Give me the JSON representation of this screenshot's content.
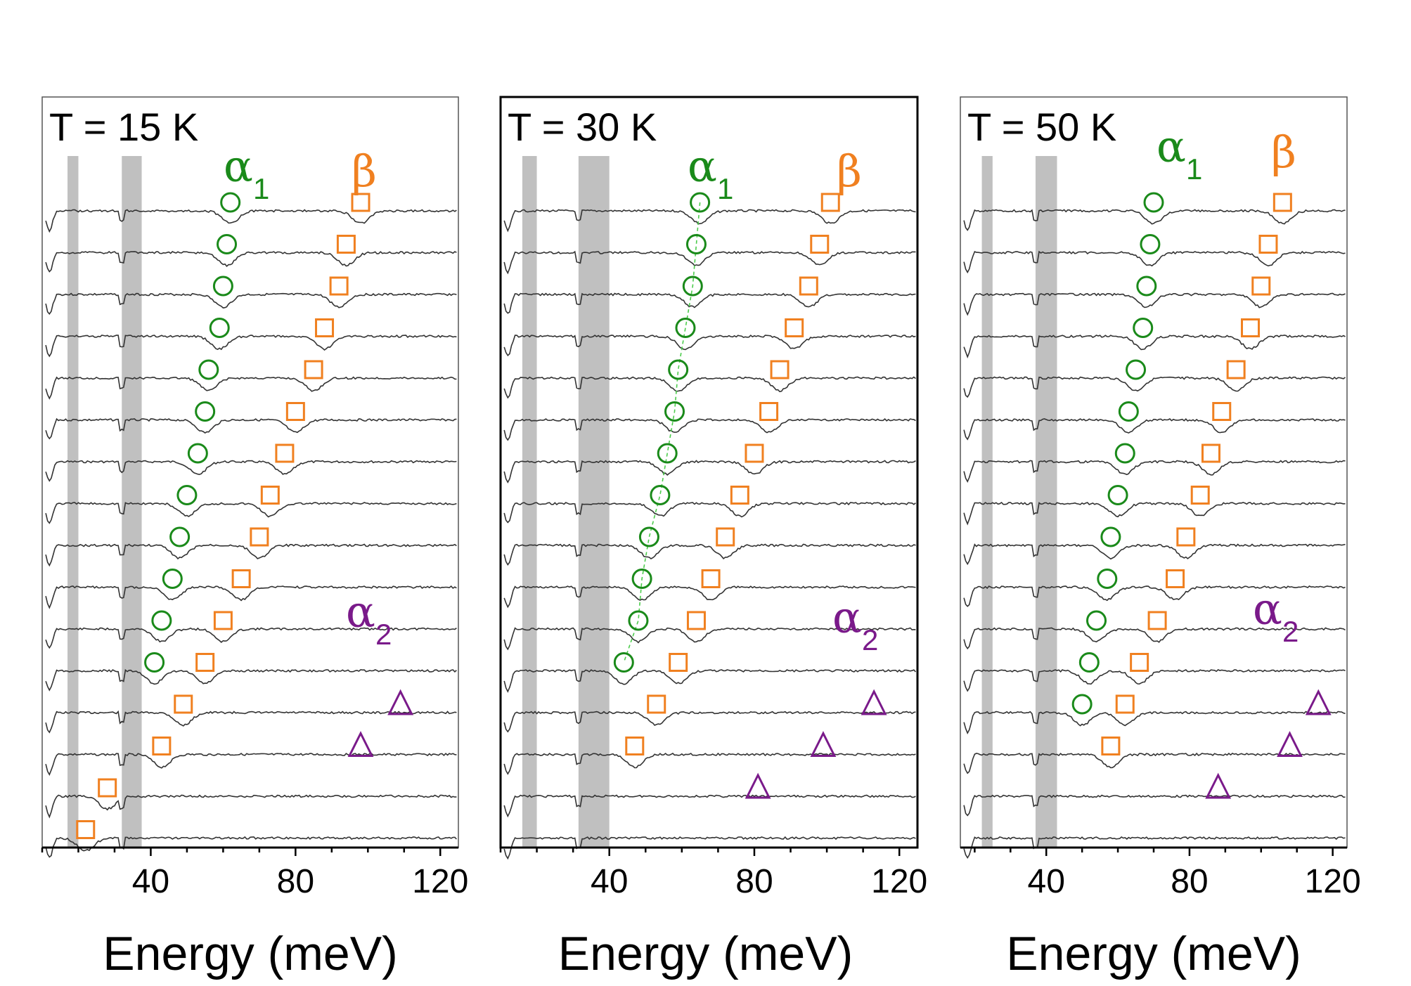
{
  "chart_data": [
    {
      "type": "line",
      "title": "T = 15 K",
      "xlabel": "Energy (meV)",
      "ylabel": "",
      "xlim": [
        10,
        125
      ],
      "xticks": [
        40,
        80,
        120
      ],
      "xtick_labels": [
        "40",
        "80",
        "120"
      ],
      "shaded_bands_meV": [
        [
          17,
          20
        ],
        [
          32,
          37.5
        ]
      ],
      "trace_count": 16,
      "legend": {
        "alpha1": {
          "label": "α",
          "sub": "1"
        },
        "beta": {
          "label": "β"
        },
        "alpha2": {
          "label": "α",
          "sub": "2"
        }
      },
      "series": [
        {
          "name": "α1",
          "marker": "circle",
          "color": "#1a8a1a",
          "points": [
            [
              62,
              1
            ],
            [
              61,
              2
            ],
            [
              60,
              3
            ],
            [
              59,
              4
            ],
            [
              56,
              5
            ],
            [
              55,
              6
            ],
            [
              53,
              7
            ],
            [
              50,
              8
            ],
            [
              48,
              9
            ],
            [
              46,
              10
            ],
            [
              43,
              11
            ],
            [
              41,
              12
            ]
          ]
        },
        {
          "name": "β",
          "marker": "square",
          "color": "#f08020",
          "points": [
            [
              98,
              1
            ],
            [
              94,
              2
            ],
            [
              92,
              3
            ],
            [
              88,
              4
            ],
            [
              85,
              5
            ],
            [
              80,
              6
            ],
            [
              77,
              7
            ],
            [
              73,
              8
            ],
            [
              70,
              9
            ],
            [
              65,
              10
            ],
            [
              60,
              11
            ],
            [
              55,
              12
            ],
            [
              49,
              13
            ],
            [
              43,
              14
            ],
            [
              28,
              15
            ],
            [
              22,
              16
            ]
          ]
        },
        {
          "name": "α2",
          "marker": "triangle",
          "color": "#7a1a8a",
          "points": [
            [
              109,
              13
            ],
            [
              98,
              14
            ]
          ]
        }
      ]
    },
    {
      "type": "line",
      "title": "T = 30 K",
      "xlabel": "Energy (meV)",
      "ylabel": "",
      "xlim": [
        10,
        125
      ],
      "xticks": [
        40,
        80,
        120
      ],
      "xtick_labels": [
        "40",
        "80",
        "120"
      ],
      "shaded_bands_meV": [
        [
          16,
          20
        ],
        [
          31.5,
          40
        ]
      ],
      "trace_count": 16,
      "legend": {
        "alpha1": {
          "label": "α",
          "sub": "1"
        },
        "beta": {
          "label": "β"
        },
        "alpha2": {
          "label": "α",
          "sub": "2"
        }
      },
      "series": [
        {
          "name": "α1",
          "marker": "circle",
          "color": "#1a8a1a",
          "points": [
            [
              65,
              1
            ],
            [
              64,
              2
            ],
            [
              63,
              3
            ],
            [
              61,
              4
            ],
            [
              59,
              5
            ],
            [
              58,
              6
            ],
            [
              56,
              7
            ],
            [
              54,
              8
            ],
            [
              51,
              9
            ],
            [
              49,
              10
            ],
            [
              48,
              11
            ],
            [
              44,
              12
            ]
          ]
        },
        {
          "name": "β",
          "marker": "square",
          "color": "#f08020",
          "points": [
            [
              101,
              1
            ],
            [
              98,
              2
            ],
            [
              95,
              3
            ],
            [
              91,
              4
            ],
            [
              87,
              5
            ],
            [
              84,
              6
            ],
            [
              80,
              7
            ],
            [
              76,
              8
            ],
            [
              72,
              9
            ],
            [
              68,
              10
            ],
            [
              64,
              11
            ],
            [
              59,
              12
            ],
            [
              53,
              13
            ],
            [
              47,
              14
            ]
          ]
        },
        {
          "name": "α2",
          "marker": "triangle",
          "color": "#7a1a8a",
          "points": [
            [
              113,
              13
            ],
            [
              99,
              14
            ],
            [
              81,
              15
            ]
          ]
        }
      ]
    },
    {
      "type": "line",
      "title": "T = 50 K",
      "xlabel": "Energy (meV)",
      "ylabel": "",
      "xlim": [
        16,
        124
      ],
      "xticks": [
        40,
        80,
        120
      ],
      "xtick_labels": [
        "40",
        "80",
        "120"
      ],
      "shaded_bands_meV": [
        [
          22,
          25
        ],
        [
          37,
          43
        ]
      ],
      "trace_count": 16,
      "legend": {
        "alpha1": {
          "label": "α",
          "sub": "1"
        },
        "beta": {
          "label": "β"
        },
        "alpha2": {
          "label": "α",
          "sub": "2"
        }
      },
      "series": [
        {
          "name": "α1",
          "marker": "circle",
          "color": "#1a8a1a",
          "points": [
            [
              70,
              1
            ],
            [
              69,
              2
            ],
            [
              68,
              3
            ],
            [
              67,
              4
            ],
            [
              65,
              5
            ],
            [
              63,
              6
            ],
            [
              62,
              7
            ],
            [
              60,
              8
            ],
            [
              58,
              9
            ],
            [
              57,
              10
            ],
            [
              54,
              11
            ],
            [
              52,
              12
            ],
            [
              50,
              13
            ]
          ]
        },
        {
          "name": "β",
          "marker": "square",
          "color": "#f08020",
          "points": [
            [
              106,
              1
            ],
            [
              102,
              2
            ],
            [
              100,
              3
            ],
            [
              97,
              4
            ],
            [
              93,
              5
            ],
            [
              89,
              6
            ],
            [
              86,
              7
            ],
            [
              83,
              8
            ],
            [
              79,
              9
            ],
            [
              76,
              10
            ],
            [
              71,
              11
            ],
            [
              66,
              12
            ],
            [
              62,
              13
            ],
            [
              58,
              14
            ]
          ]
        },
        {
          "name": "α2",
          "marker": "triangle",
          "color": "#7a1a8a",
          "points": [
            [
              116,
              13
            ],
            [
              108,
              14
            ],
            [
              88,
              15
            ]
          ]
        }
      ]
    }
  ]
}
